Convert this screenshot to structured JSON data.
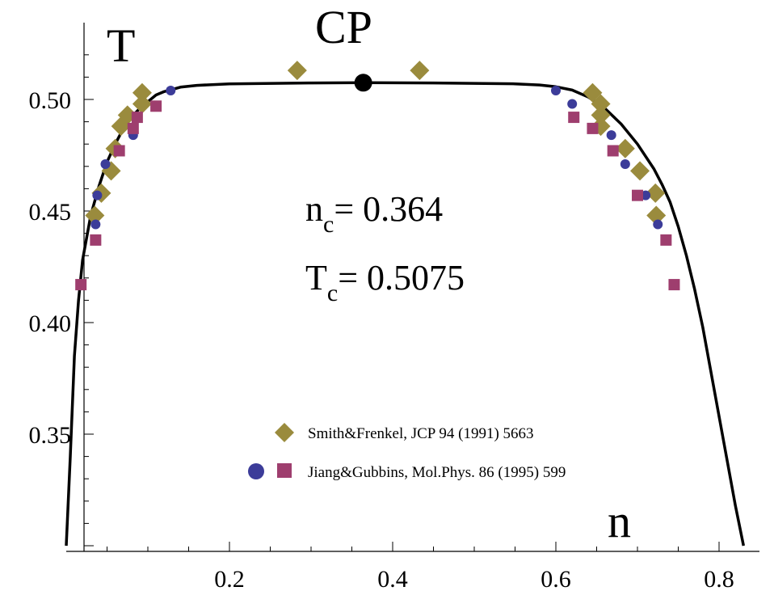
{
  "chart_data": {
    "type": "scatter",
    "title": "",
    "xlabel": "n",
    "ylabel": "T",
    "xlim": [
      0,
      0.93
    ],
    "ylim": [
      0.3,
      0.52
    ],
    "x_ticks": [
      "0.2",
      "0.4",
      "0.6",
      "0.8"
    ],
    "y_ticks": [
      "0.35",
      "0.40",
      "0.45",
      "0.50"
    ],
    "grid": false,
    "legend_position": "bottom-right",
    "critical_point": {
      "label": "CP",
      "n": 0.364,
      "T": 0.5075
    },
    "annotations": {
      "nc_main": "n",
      "nc_sub": "c",
      "nc_value": "= 0.364",
      "tc_main": "T",
      "tc_sub": "c",
      "tc_value": "= 0.5075"
    },
    "curve": {
      "name": "",
      "color": "#000000",
      "x": [
        0.0,
        0.005,
        0.01,
        0.015,
        0.02,
        0.03,
        0.04,
        0.05,
        0.06,
        0.07,
        0.08,
        0.09,
        0.1,
        0.11,
        0.12,
        0.14,
        0.16,
        0.2,
        0.3,
        0.364,
        0.45,
        0.55,
        0.58,
        0.6,
        0.62,
        0.64,
        0.66,
        0.68,
        0.7,
        0.72,
        0.73,
        0.74,
        0.75,
        0.76,
        0.77,
        0.78,
        0.79,
        0.8,
        0.81,
        0.82,
        0.83
      ],
      "y": [
        0.3,
        0.34,
        0.385,
        0.41,
        0.428,
        0.448,
        0.461,
        0.472,
        0.48,
        0.487,
        0.492,
        0.496,
        0.499,
        0.502,
        0.5035,
        0.5055,
        0.5063,
        0.507,
        0.5074,
        0.5075,
        0.5074,
        0.507,
        0.5065,
        0.5057,
        0.5042,
        0.501,
        0.496,
        0.489,
        0.48,
        0.469,
        0.462,
        0.454,
        0.443,
        0.43,
        0.415,
        0.398,
        0.378,
        0.358,
        0.338,
        0.318,
        0.3
      ]
    },
    "series": [
      {
        "name": "Smith&Frenkel, JCP 94 (1991) 5663",
        "marker": "diamond",
        "color": "#9a8b3d",
        "x": [
          0.283,
          0.433,
          0.093,
          0.093,
          0.075,
          0.067,
          0.06,
          0.055,
          0.043,
          0.035,
          0.645,
          0.655,
          0.655,
          0.655,
          0.685,
          0.703,
          0.722,
          0.723
        ],
        "y": [
          0.513,
          0.513,
          0.503,
          0.498,
          0.493,
          0.488,
          0.478,
          0.468,
          0.458,
          0.448,
          0.503,
          0.498,
          0.493,
          0.488,
          0.478,
          0.468,
          0.458,
          0.448
        ]
      },
      {
        "name": "Jiang&Gubbins, Mol.Phys. 86 (1995) 599",
        "marker": "circle",
        "color": "#3c3c99",
        "x": [
          0.128,
          0.082,
          0.048,
          0.038,
          0.036,
          0.6,
          0.62,
          0.668,
          0.685,
          0.71,
          0.725
        ],
        "y": [
          0.504,
          0.484,
          0.471,
          0.457,
          0.444,
          0.504,
          0.498,
          0.484,
          0.471,
          0.457,
          0.444
        ]
      },
      {
        "name": "Jiang&Gubbins, Mol.Phys. 86 (1995) 599",
        "marker": "square",
        "color": "#9e3e6e",
        "x": [
          0.11,
          0.087,
          0.082,
          0.065,
          0.036,
          0.018,
          0.622,
          0.645,
          0.67,
          0.7,
          0.735,
          0.745
        ],
        "y": [
          0.497,
          0.492,
          0.487,
          0.477,
          0.437,
          0.417,
          0.492,
          0.487,
          0.477,
          0.457,
          0.437,
          0.417
        ]
      }
    ]
  },
  "legend": [
    {
      "label": "Smith&Frenkel, JCP 94 (1991) 5663"
    },
    {
      "label": "Jiang&Gubbins, Mol.Phys. 86 (1995) 599"
    }
  ]
}
